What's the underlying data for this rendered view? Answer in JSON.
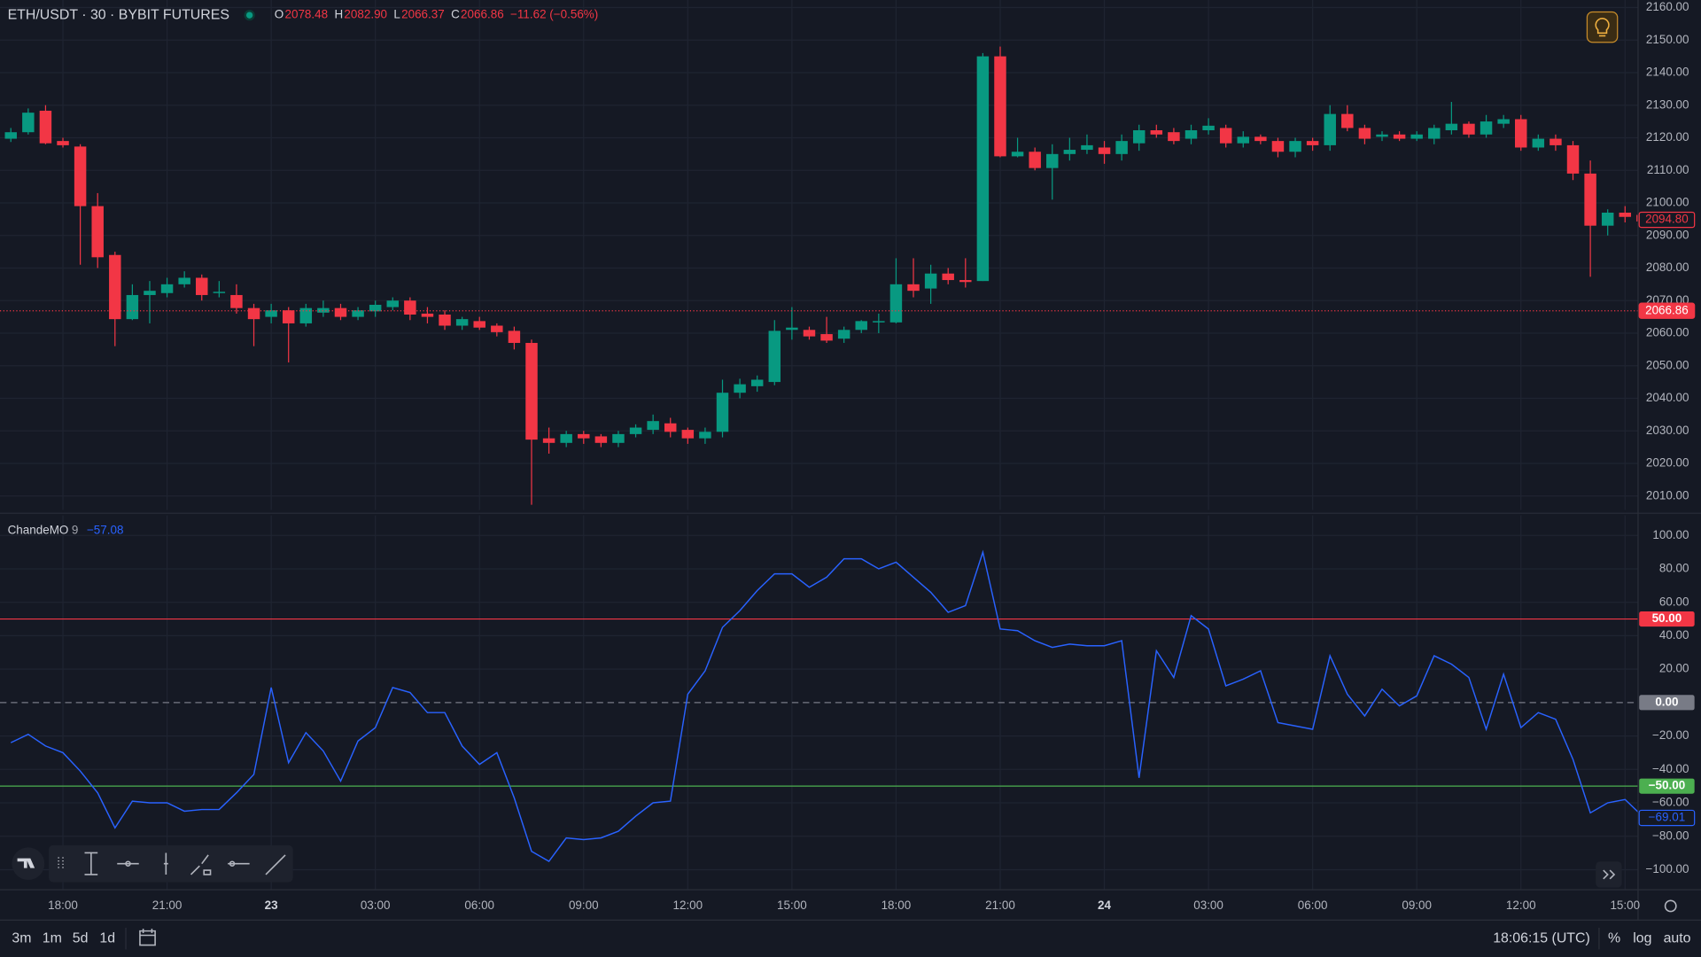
{
  "header": {
    "symbol": "ETH/USDT · 30 · BYBIT FUTURES",
    "ohlc": [
      {
        "key": "O",
        "value": "2078.48"
      },
      {
        "key": "H",
        "value": "2082.90"
      },
      {
        "key": "L",
        "value": "2066.37"
      },
      {
        "key": "C",
        "value": "2066.86"
      }
    ],
    "change": "−11.62 (−0.56%)"
  },
  "chart_data": [
    {
      "type": "candlestick",
      "categories": [
        null,
        null,
        null,
        "18:00",
        null,
        null,
        null,
        null,
        null,
        "21:00",
        null,
        null,
        null,
        null,
        null,
        "23",
        null,
        null,
        null,
        null,
        null,
        "03:00",
        null,
        null,
        null,
        null,
        null,
        "06:00",
        null,
        null,
        null,
        null,
        null,
        "09:00",
        null,
        null,
        null,
        null,
        null,
        "12:00",
        null,
        null,
        null,
        null,
        null,
        "15:00",
        null,
        null,
        null,
        null,
        null,
        "18:00",
        null,
        null,
        null,
        null,
        null,
        "21:00",
        null,
        null,
        null,
        null,
        null,
        "24",
        null,
        null,
        null,
        null,
        null,
        "03:00",
        null,
        null,
        null,
        null,
        null,
        "06:00",
        null,
        null,
        null,
        null,
        null,
        "09:00",
        null,
        null,
        null,
        null,
        null,
        "12:00",
        null,
        null,
        null,
        null,
        null,
        "15:00",
        null
      ],
      "open": [
        2119.7,
        2121.7,
        2128.3,
        2119,
        2117.3,
        2099,
        2084,
        2064.3,
        2071.7,
        2072.3,
        2075,
        2077,
        2072.3,
        2071.7,
        2067.7,
        2065,
        2067,
        2063,
        2066.3,
        2067.7,
        2065,
        2066.7,
        2068,
        2070,
        2066,
        2065.7,
        2062.3,
        2063.7,
        2062.3,
        2060.7,
        2057,
        2027.7,
        2026.3,
        2029,
        2028.3,
        2026.3,
        2029,
        2030.3,
        2032.3,
        2030.3,
        2027.7,
        2029.7,
        2041.7,
        2043.7,
        2045,
        2061,
        2061,
        2059.7,
        2058.3,
        2061,
        2063.3,
        2063.3,
        2075,
        2073.7,
        2078.3,
        2076.3,
        2076,
        2145,
        2114.3,
        2115.7,
        2110.7,
        2115,
        2116.3,
        2117,
        2115,
        2118.3,
        2122.3,
        2121.7,
        2119.7,
        2122.3,
        2123,
        2118.3,
        2120.3,
        2119,
        2115.7,
        2119,
        2117.7,
        2127.3,
        2123,
        2120.3,
        2121,
        2119.7,
        2119.7,
        2122.3,
        2124.3,
        2121,
        2124.3,
        2125.7,
        2117,
        2119.7,
        2117.7,
        2109,
        2093,
        2097,
        2096.3
      ],
      "high": [
        2123,
        2129,
        2130,
        2120,
        2118,
        2103,
        2085,
        2075,
        2076,
        2077,
        2079,
        2078,
        2076,
        2075,
        2069,
        2069,
        2068,
        2069,
        2070,
        2069,
        2068,
        2070,
        2071,
        2071,
        2068,
        2067,
        2065,
        2065,
        2063,
        2062,
        2058,
        2031,
        2030,
        2030,
        2029,
        2030,
        2032,
        2035,
        2034,
        2031,
        2031,
        2045.7,
        2046,
        2047,
        2064,
        2068,
        2062,
        2065,
        2062,
        2064,
        2066,
        2083,
        2083,
        2081,
        2080,
        2083,
        2146,
        2148,
        2120,
        2117,
        2118,
        2120,
        2121,
        2119,
        2121,
        2124,
        2124,
        2123,
        2124,
        2126,
        2124,
        2122,
        2121,
        2120,
        2120,
        2120,
        2130,
        2130,
        2124,
        2122,
        2122,
        2122,
        2124,
        2131,
        2125,
        2127,
        2127,
        2127,
        2121,
        2121,
        2119,
        2113,
        2098,
        2099,
        2097
      ],
      "low": [
        2118.7,
        2121,
        2118,
        2117,
        2081,
        2080,
        2056,
        2064,
        2063,
        2071,
        2074,
        2070,
        2071,
        2066,
        2056,
        2063,
        2051,
        2062,
        2065,
        2064,
        2064,
        2065,
        2067,
        2064,
        2063,
        2061,
        2061,
        2061,
        2059,
        2055,
        2007.3,
        2023,
        2025,
        2026,
        2025,
        2025,
        2028,
        2029,
        2028,
        2026,
        2026,
        2028,
        2040,
        2042,
        2044,
        2058,
        2058,
        2057,
        2057,
        2060,
        2060,
        2063,
        2071,
        2069,
        2075,
        2074,
        2076,
        2114,
        2114,
        2110,
        2101,
        2113,
        2115,
        2112,
        2113,
        2116,
        2120,
        2118,
        2118,
        2121,
        2117,
        2117,
        2118,
        2114,
        2114,
        2116,
        2116,
        2122,
        2118,
        2119,
        2119,
        2119,
        2118,
        2121,
        2120,
        2120,
        2123,
        2116,
        2116,
        2116,
        2107,
        2077.3,
        2090,
        2094,
        2093
      ],
      "close": [
        2121.7,
        2127.7,
        2118.3,
        2117.7,
        2099,
        2083.3,
        2064.3,
        2071.7,
        2073,
        2075,
        2077,
        2071.7,
        2072.7,
        2067.7,
        2064.3,
        2067,
        2063,
        2067.7,
        2067.7,
        2065,
        2067,
        2068.7,
        2070,
        2065.7,
        2065,
        2062.3,
        2064.3,
        2061.7,
        2060.3,
        2057,
        2027.3,
        2026.3,
        2029,
        2027.7,
        2026.3,
        2029,
        2031,
        2033,
        2029.7,
        2027.7,
        2029.7,
        2041.7,
        2044.3,
        2045.7,
        2060.7,
        2061.7,
        2059,
        2057.7,
        2061,
        2063.7,
        2063.7,
        2075,
        2073,
        2078.3,
        2076.3,
        2075.7,
        2145,
        2114.3,
        2115.7,
        2110.7,
        2115,
        2116.3,
        2117.7,
        2115,
        2119,
        2122.3,
        2121,
        2119,
        2122.3,
        2123.7,
        2118.3,
        2120.3,
        2119,
        2115.7,
        2119,
        2117.7,
        2127.3,
        2123,
        2119.7,
        2121,
        2119.7,
        2121,
        2123,
        2124.3,
        2121,
        2125,
        2125.7,
        2117,
        2119.7,
        2117.7,
        2109,
        2093,
        2097,
        2095.7,
        2094.3
      ],
      "up_color": "#089981",
      "down_color": "#f23645",
      "ylim": [
        2005.7,
        2162.3
      ],
      "yticks": [
        {
          "value": 2010,
          "label": "2010.00"
        },
        {
          "value": 2020,
          "label": "2020.00"
        },
        {
          "value": 2030,
          "label": "2030.00"
        },
        {
          "value": 2040,
          "label": "2040.00"
        },
        {
          "value": 2050,
          "label": "2050.00"
        },
        {
          "value": 2060,
          "label": "2060.00"
        },
        {
          "value": 2070,
          "label": "2070.00"
        },
        {
          "value": 2080,
          "label": "2080.00"
        },
        {
          "value": 2090,
          "label": "2090.00"
        },
        {
          "value": 2100,
          "label": "2100.00"
        },
        {
          "value": 2110,
          "label": "2110.00"
        },
        {
          "value": 2120,
          "label": "2120.00"
        },
        {
          "value": 2130,
          "label": "2130.00"
        },
        {
          "value": 2140,
          "label": "2140.00"
        },
        {
          "value": 2150,
          "label": "2150.00"
        },
        {
          "value": 2160,
          "label": "2160.00"
        }
      ],
      "grid": true,
      "markers": [
        {
          "value": 2094.8,
          "label": "2094.80",
          "style": "outline",
          "color": "#f23645"
        },
        {
          "value": 2066.86,
          "label": "2066.86",
          "style": "filled",
          "color": "#f23645",
          "line": "dotted"
        }
      ]
    },
    {
      "type": "line",
      "series": [
        {
          "name": "ChandeMO",
          "color": "#2962ff",
          "values": [
            -24,
            -19,
            -26,
            -30,
            -41,
            -54,
            -75,
            -59,
            -60,
            -60,
            -65,
            -64,
            -64,
            -54,
            -43,
            9,
            -36,
            -18,
            -29,
            -47,
            -23,
            -15,
            9,
            6,
            -6,
            -6,
            -26,
            -37,
            -30,
            -57,
            -89,
            -95,
            -81,
            -82,
            -81,
            -77,
            -68,
            -60,
            -59,
            5,
            19,
            45,
            55,
            67,
            77,
            77,
            69,
            75,
            86,
            86,
            80,
            84,
            75,
            66,
            54,
            58,
            90,
            44,
            43,
            37,
            33,
            35,
            34,
            34,
            37,
            -45,
            31,
            15,
            52,
            44,
            10,
            14,
            19,
            -12,
            -14,
            -16,
            28,
            5,
            -8,
            8,
            -2,
            4,
            28,
            23,
            15,
            -16,
            17,
            -15,
            -6,
            -10,
            -34,
            -66,
            -60,
            -58,
            -68
          ]
        }
      ],
      "period": 9,
      "legend_value": {
        "value": -57.08,
        "label": "−57.08"
      },
      "ylim": [
        -112,
        112
      ],
      "yticks": [
        {
          "value": 100,
          "label": "100.00"
        },
        {
          "value": 80,
          "label": "80.00"
        },
        {
          "value": 60,
          "label": "60.00"
        },
        {
          "value": 40,
          "label": "40.00"
        },
        {
          "value": 20,
          "label": "20.00"
        },
        {
          "value": -20,
          "label": "−20.00"
        },
        {
          "value": -40,
          "label": "−40.00"
        },
        {
          "value": -60,
          "label": "−60.00"
        },
        {
          "value": -80,
          "label": "−80.00"
        },
        {
          "value": -100,
          "label": "−100.00"
        }
      ],
      "grid": true,
      "levels": [
        {
          "value": 50,
          "label": "50.00",
          "color": "#f23645",
          "style": "solid"
        },
        {
          "value": 0,
          "label": "0.00",
          "color": "#787b86",
          "style": "dashed"
        },
        {
          "value": -50,
          "label": "−50.00",
          "color": "#4caf50",
          "style": "solid"
        }
      ],
      "markers": [
        {
          "value": -69.01,
          "label": "−69.01",
          "style": "outline",
          "color": "#2962ff"
        }
      ]
    }
  ],
  "toolbar": {
    "intervals": [
      "3m",
      "1m",
      "5d",
      "1d"
    ],
    "clock": "18:06:15 (UTC)",
    "options": [
      "%",
      "log",
      "auto"
    ]
  }
}
